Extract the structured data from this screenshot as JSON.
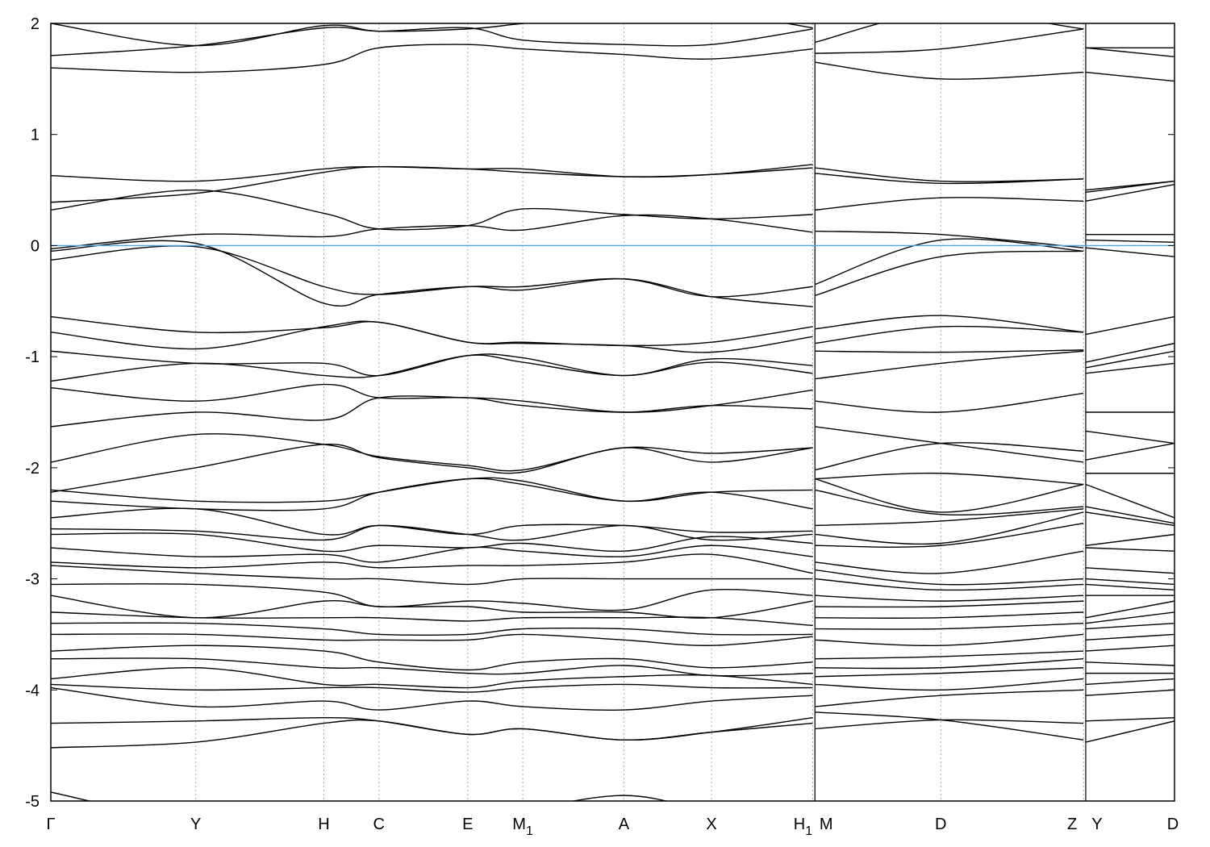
{
  "chart_data": {
    "type": "line",
    "title": "",
    "xlabel": "",
    "ylabel": "",
    "ylim": [
      -5,
      2
    ],
    "yticks": [
      "2",
      "1",
      "0",
      "-1",
      "-2",
      "-3",
      "-4",
      "-5"
    ],
    "ytick_values": [
      2,
      1,
      0,
      -1,
      -2,
      -3,
      -4,
      -5
    ],
    "grid": "vertical dashed lines at high-symmetry points",
    "fermi_level": {
      "value": 0,
      "color": "#4aa8e0"
    },
    "band_color": "#000000",
    "kpoints": [
      {
        "label": "Γ",
        "k": 0
      },
      {
        "label": "Y",
        "k": 1.29
      },
      {
        "label": "H",
        "k": 2.43
      },
      {
        "label": "C",
        "k": 2.92
      },
      {
        "label": "E",
        "k": 3.71
      },
      {
        "label": "M",
        "sub": "1",
        "k": 4.2
      },
      {
        "label": "A",
        "k": 5.1
      },
      {
        "label": "X",
        "k": 5.88
      },
      {
        "label": "H",
        "sub": "1",
        "k": 6.78
      },
      {
        "label": "M",
        "k": 6.8
      },
      {
        "label": "D",
        "k": 7.92
      },
      {
        "label": "Z",
        "k": 9.19
      },
      {
        "label": "Y",
        "k": 9.21
      },
      {
        "label": "D",
        "k": 10.0
      }
    ],
    "path_segments": [
      [
        0,
        8
      ],
      [
        9,
        11
      ],
      [
        12,
        13
      ]
    ],
    "bands": [
      [
        2.0,
        1.8,
        1.98,
        1.93,
        1.95,
        2.0,
        2.1,
        2.1,
        1.96,
        1.83,
        2.1,
        1.95,
        1.78,
        1.78
      ],
      [
        1.71,
        1.8,
        1.96,
        1.93,
        1.96,
        1.85,
        1.81,
        1.81,
        1.95,
        1.73,
        1.77,
        1.95,
        1.78,
        1.7
      ],
      [
        1.6,
        1.56,
        1.63,
        1.78,
        1.81,
        1.77,
        1.72,
        1.68,
        1.77,
        1.65,
        1.5,
        1.56,
        1.56,
        1.48
      ],
      [
        0.63,
        0.58,
        0.69,
        0.71,
        0.69,
        0.69,
        0.62,
        0.64,
        0.73,
        0.7,
        0.58,
        0.6,
        0.5,
        0.58
      ],
      [
        0.39,
        0.47,
        0.66,
        0.71,
        0.69,
        0.66,
        0.62,
        0.64,
        0.7,
        0.65,
        0.56,
        0.6,
        0.48,
        0.58
      ],
      [
        0.32,
        0.5,
        0.29,
        0.15,
        0.18,
        0.33,
        0.28,
        0.24,
        0.28,
        0.32,
        0.43,
        0.4,
        0.4,
        0.55
      ],
      [
        -0.03,
        0.1,
        0.08,
        0.15,
        0.18,
        0.14,
        0.27,
        0.24,
        0.12,
        0.13,
        0.1,
        -0.02,
        0.1,
        0.1
      ],
      [
        -0.13,
        -0.01,
        -0.37,
        -0.44,
        -0.37,
        -0.37,
        -0.3,
        -0.46,
        -0.37,
        -0.35,
        0.05,
        -0.05,
        0.05,
        0.03
      ],
      [
        -0.05,
        0.02,
        -0.52,
        -0.44,
        -0.37,
        -0.4,
        -0.3,
        -0.46,
        -0.55,
        -0.45,
        -0.1,
        -0.05,
        -0.02,
        -0.1
      ],
      [
        -0.64,
        -0.78,
        -0.74,
        -0.69,
        -0.87,
        -0.87,
        -0.9,
        -0.87,
        -0.73,
        -0.75,
        -0.63,
        -0.78,
        -0.8,
        -0.64
      ],
      [
        -0.78,
        -0.93,
        -0.73,
        -0.69,
        -0.87,
        -0.88,
        -0.9,
        -0.96,
        -0.82,
        -0.88,
        -0.73,
        -0.78,
        -1.05,
        -0.88
      ],
      [
        -0.95,
        -1.06,
        -1.06,
        -1.17,
        -0.99,
        -1.01,
        -1.17,
        -1.02,
        -1.08,
        -0.95,
        -0.96,
        -0.94,
        -1.1,
        -0.95
      ],
      [
        -1.22,
        -1.06,
        -1.17,
        -1.17,
        -0.99,
        -1.05,
        -1.17,
        -1.05,
        -1.15,
        -1.2,
        -1.06,
        -0.95,
        -1.15,
        -1.06
      ],
      [
        -1.28,
        -1.4,
        -1.25,
        -1.37,
        -1.37,
        -1.44,
        -1.5,
        -1.44,
        -1.47,
        -1.4,
        -1.5,
        -1.33,
        -1.5,
        -1.5
      ],
      [
        -1.63,
        -1.5,
        -1.57,
        -1.37,
        -1.37,
        -1.4,
        -1.5,
        -1.44,
        -1.3,
        -1.63,
        -1.78,
        -1.95,
        -1.67,
        -1.78
      ],
      [
        -1.95,
        -1.7,
        -1.79,
        -1.9,
        -1.98,
        -2.02,
        -1.82,
        -1.87,
        -1.82,
        -2.02,
        -1.78,
        -1.85,
        -1.93,
        -1.78
      ],
      [
        -2.22,
        -2.0,
        -1.79,
        -1.91,
        -2.0,
        -2.04,
        -1.82,
        -1.95,
        -1.82,
        -2.1,
        -2.05,
        -2.15,
        -2.05,
        -2.05
      ],
      [
        -2.2,
        -2.3,
        -2.3,
        -2.22,
        -2.1,
        -2.12,
        -2.3,
        -2.22,
        -2.2,
        -2.1,
        -2.4,
        -2.15,
        -2.15,
        -2.45
      ],
      [
        -2.3,
        -2.37,
        -2.37,
        -2.22,
        -2.1,
        -2.15,
        -2.3,
        -2.22,
        -2.37,
        -2.2,
        -2.42,
        -2.35,
        -2.35,
        -2.5
      ],
      [
        -2.45,
        -2.37,
        -2.6,
        -2.52,
        -2.6,
        -2.52,
        -2.52,
        -2.58,
        -2.57,
        -2.52,
        -2.48,
        -2.37,
        -2.4,
        -2.52
      ],
      [
        -2.55,
        -2.57,
        -2.65,
        -2.52,
        -2.6,
        -2.65,
        -2.52,
        -2.65,
        -2.6,
        -2.6,
        -2.68,
        -2.4,
        -2.7,
        -2.6
      ],
      [
        -2.6,
        -2.6,
        -2.75,
        -2.7,
        -2.72,
        -2.68,
        -2.75,
        -2.62,
        -2.68,
        -2.7,
        -2.7,
        -2.5,
        -2.72,
        -2.75
      ],
      [
        -2.72,
        -2.8,
        -2.78,
        -2.85,
        -2.72,
        -2.75,
        -2.8,
        -2.7,
        -2.8,
        -2.85,
        -2.95,
        -2.75,
        -2.9,
        -2.95
      ],
      [
        -2.85,
        -2.9,
        -2.85,
        -2.9,
        -2.88,
        -2.88,
        -2.85,
        -2.78,
        -2.95,
        -2.92,
        -3.05,
        -3.0,
        -3.0,
        -3.05
      ],
      [
        -2.88,
        -2.95,
        -3.0,
        -3.0,
        -3.05,
        -3.0,
        -3.0,
        -3.0,
        -3.0,
        -3.0,
        -3.1,
        -3.05,
        -3.05,
        -3.1
      ],
      [
        -3.05,
        -3.05,
        -3.12,
        -3.25,
        -3.2,
        -3.22,
        -3.28,
        -3.1,
        -3.15,
        -3.15,
        -3.2,
        -3.15,
        -3.15,
        -3.15
      ],
      [
        -3.15,
        -3.35,
        -3.2,
        -3.25,
        -3.25,
        -3.3,
        -3.3,
        -3.35,
        -3.2,
        -3.25,
        -3.25,
        -3.2,
        -3.35,
        -3.2
      ],
      [
        -3.3,
        -3.35,
        -3.35,
        -3.35,
        -3.38,
        -3.35,
        -3.35,
        -3.35,
        -3.42,
        -3.35,
        -3.35,
        -3.3,
        -3.4,
        -3.3
      ],
      [
        -3.4,
        -3.4,
        -3.45,
        -3.5,
        -3.5,
        -3.45,
        -3.45,
        -3.5,
        -3.5,
        -3.45,
        -3.45,
        -3.4,
        -3.45,
        -3.4
      ],
      [
        -3.5,
        -3.5,
        -3.55,
        -3.55,
        -3.55,
        -3.5,
        -3.55,
        -3.6,
        -3.52,
        -3.55,
        -3.6,
        -3.5,
        -3.55,
        -3.5
      ],
      [
        -3.65,
        -3.6,
        -3.65,
        -3.75,
        -3.82,
        -3.75,
        -3.72,
        -3.8,
        -3.75,
        -3.72,
        -3.7,
        -3.65,
        -3.65,
        -3.6
      ],
      [
        -3.72,
        -3.72,
        -3.8,
        -3.8,
        -3.85,
        -3.85,
        -3.78,
        -3.87,
        -3.85,
        -3.8,
        -3.8,
        -3.72,
        -3.75,
        -3.78
      ],
      [
        -3.9,
        -3.8,
        -3.95,
        -3.95,
        -3.98,
        -3.92,
        -3.88,
        -3.87,
        -3.95,
        -3.88,
        -3.85,
        -3.8,
        -3.85,
        -3.85
      ],
      [
        -3.95,
        -4.0,
        -3.98,
        -3.98,
        -4.02,
        -3.98,
        -3.95,
        -3.98,
        -3.98,
        -3.95,
        -4.0,
        -3.9,
        -3.95,
        -3.9
      ],
      [
        -3.98,
        -4.15,
        -4.1,
        -4.18,
        -4.1,
        -4.15,
        -4.18,
        -4.1,
        -4.05,
        -4.15,
        -4.05,
        -4.0,
        -4.05,
        -4.0
      ],
      [
        -4.3,
        -4.28,
        -4.25,
        -4.28,
        -4.4,
        -4.35,
        -4.45,
        -4.38,
        -4.3,
        -4.35,
        -4.27,
        -4.3,
        -4.28,
        -4.25
      ],
      [
        -4.52,
        -4.47,
        -4.3,
        -4.28,
        -4.4,
        -4.35,
        -4.45,
        -4.38,
        -4.25,
        -4.2,
        -4.27,
        -4.45,
        -4.47,
        -4.28
      ],
      [
        -4.92,
        -5.2,
        -5.3,
        -5.3,
        -5.3,
        -5.1,
        -4.95,
        -5.1,
        -5.3,
        -5.3,
        -5.3,
        -5.3,
        -5.3,
        -5.3
      ]
    ]
  }
}
